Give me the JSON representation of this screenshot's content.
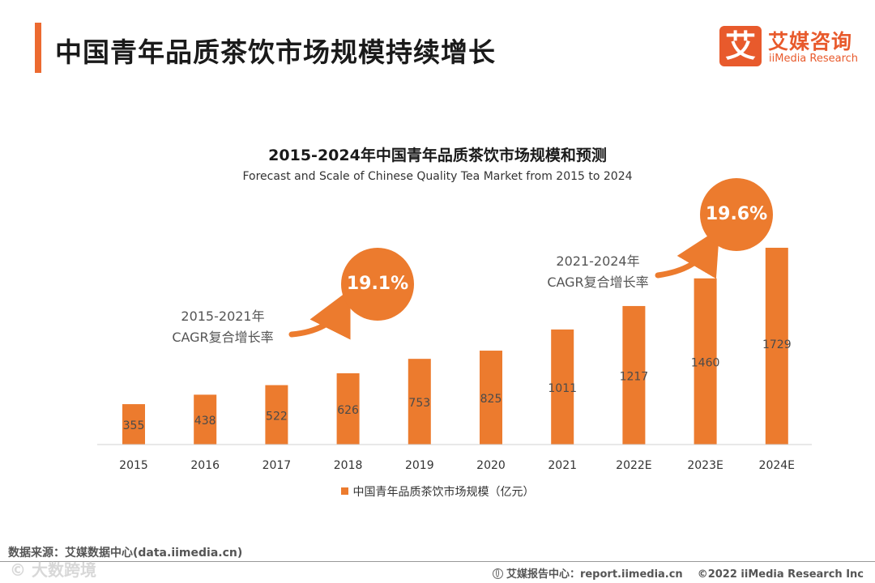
{
  "header": {
    "title": "中国青年品质茶饮市场规模持续增长",
    "logo_badge": "艾",
    "logo_cn": "艾媒咨询",
    "logo_en": "iiMedia Research"
  },
  "chart_data": {
    "type": "bar",
    "title": "2015-2024年中国青年品质茶饮市场规模和预测",
    "subtitle": "Forecast and Scale of Chinese Quality Tea Market from 2015 to 2024",
    "categories": [
      "2015",
      "2016",
      "2017",
      "2018",
      "2019",
      "2020",
      "2021",
      "2022E",
      "2023E",
      "2024E"
    ],
    "series": [
      {
        "name": "中国青年品质茶饮市场规模（亿元）",
        "values": [
          355,
          438,
          522,
          626,
          753,
          825,
          1011,
          1217,
          1460,
          1729
        ]
      }
    ],
    "ylim": [
      0,
      1800
    ],
    "grid": false,
    "legend": "bottom-center",
    "bar_color": "#ec7b2e",
    "annotations": [
      {
        "label_line1": "2015-2021年",
        "label_line2": "CAGR复合增长率",
        "value": "19.1%"
      },
      {
        "label_line1": "2021-2024年",
        "label_line2": "CAGR复合增长率",
        "value": "19.6%"
      }
    ]
  },
  "footer": {
    "source": "数据来源：艾媒数据中心(data.iimedia.cn)",
    "report_center": "艾媒报告中心：report.iimedia.cn",
    "copyright": "©2022  iiMedia Research  Inc",
    "watermark": "© 大数跨境"
  }
}
